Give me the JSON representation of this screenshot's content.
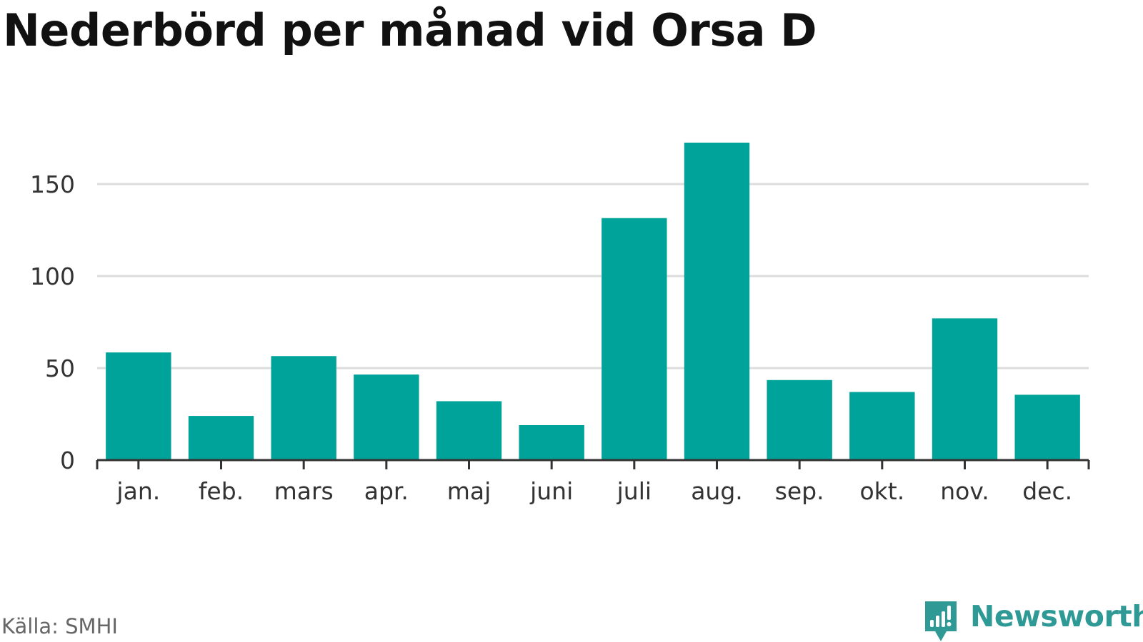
{
  "title": "Nederbörd per månad vid Orsa D",
  "source": "Källa: SMHI",
  "brand": {
    "name": "Newsworthy",
    "icon": "newsworthy-logo-icon",
    "color": "#2f9a95"
  },
  "colors": {
    "bar": "#00a39a",
    "grid": "#dddddd",
    "axis": "#333333",
    "label": "#333333"
  },
  "chart_data": {
    "type": "bar",
    "title": "Nederbörd per månad vid Orsa D",
    "xlabel": "",
    "ylabel": "",
    "categories": [
      "jan.",
      "feb.",
      "mars",
      "apr.",
      "maj",
      "juni",
      "juli",
      "aug.",
      "sep.",
      "okt.",
      "nov.",
      "dec."
    ],
    "values": [
      58.5,
      24,
      56.5,
      46.5,
      32,
      19,
      131.5,
      172.5,
      43.5,
      37,
      77,
      35.5
    ],
    "ylim": [
      0,
      175
    ],
    "yticks": [
      0,
      50,
      100,
      150
    ],
    "grid": true,
    "legend": "none"
  }
}
